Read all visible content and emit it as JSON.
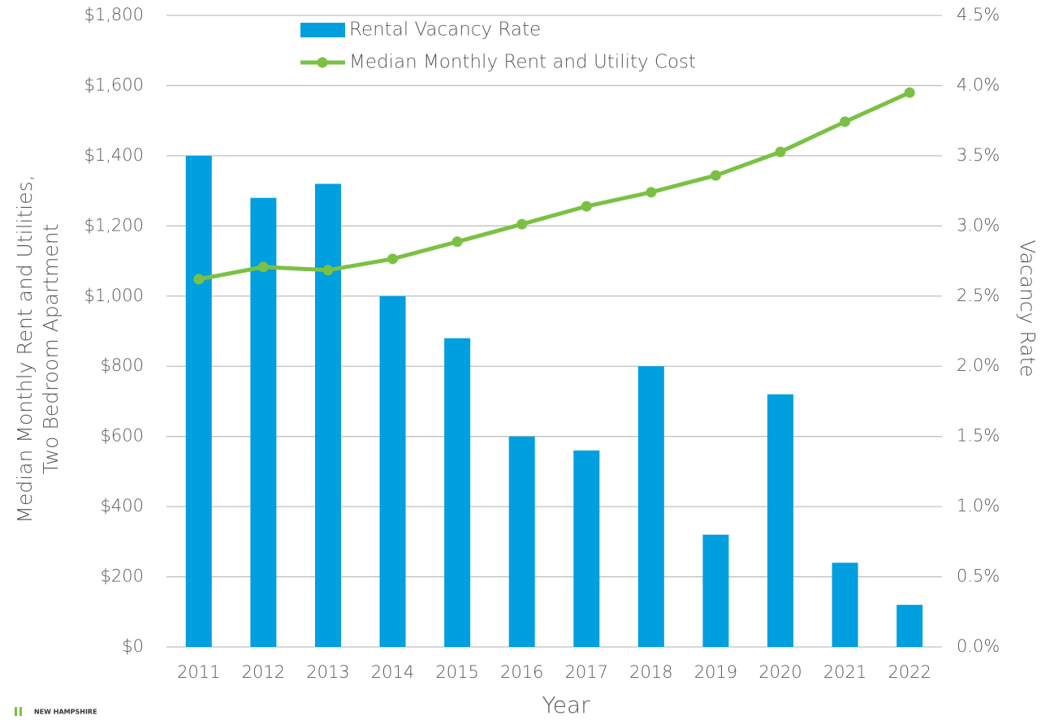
{
  "chart_data": {
    "type": "combo",
    "categories": [
      "2011",
      "2012",
      "2013",
      "2014",
      "2015",
      "2016",
      "2017",
      "2018",
      "2019",
      "2020",
      "2021",
      "2022"
    ],
    "series": [
      {
        "name": "Rental Vacancy Rate",
        "type": "bar",
        "axis": "y2",
        "color": "#009fdf",
        "values": [
          3.5,
          3.2,
          3.3,
          2.5,
          2.2,
          1.5,
          1.4,
          2.0,
          0.8,
          1.8,
          0.6,
          0.3
        ]
      },
      {
        "name": "Median Monthly Rent and Utility Cost",
        "type": "line",
        "axis": "y",
        "color": "#7ac143",
        "values": [
          1048,
          1083,
          1074,
          1106,
          1155,
          1205,
          1256,
          1296,
          1344,
          1411,
          1497,
          1580
        ]
      }
    ],
    "ylim": [
      0,
      1800
    ],
    "yticks": [
      {
        "value": 0,
        "label": "$0"
      },
      {
        "value": 200,
        "label": "$200"
      },
      {
        "value": 400,
        "label": "$400"
      },
      {
        "value": 600,
        "label": "$600"
      },
      {
        "value": 800,
        "label": "$800"
      },
      {
        "value": 1000,
        "label": "$1,000"
      },
      {
        "value": 1200,
        "label": "$1,200"
      },
      {
        "value": 1400,
        "label": "$1,400"
      },
      {
        "value": 1600,
        "label": "$1,600"
      },
      {
        "value": 1800,
        "label": "$1,800"
      }
    ],
    "y2lim": [
      0,
      4.5
    ],
    "y2ticks": [
      {
        "value": 0,
        "label": "0.0%"
      },
      {
        "value": 0.5,
        "label": "0.5%"
      },
      {
        "value": 1,
        "label": "1.0%"
      },
      {
        "value": 1.5,
        "label": "1.5%"
      },
      {
        "value": 2,
        "label": "2.0%"
      },
      {
        "value": 2.5,
        "label": "2.5%"
      },
      {
        "value": 3,
        "label": "3.0%"
      },
      {
        "value": 3.5,
        "label": "3.5%"
      },
      {
        "value": 4,
        "label": "4.0%"
      },
      {
        "value": 4.5,
        "label": "4.5%"
      }
    ],
    "ylabel": [
      "Median Monthly Rent and Utilities,",
      "Two Bedroom Apartment"
    ],
    "y2label": "Vacancy Rate",
    "xlabel": "Year",
    "grid": true
  },
  "logo_text": "NEW HAMPSHIRE"
}
